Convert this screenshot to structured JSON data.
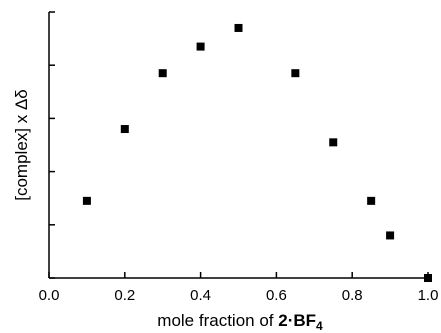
{
  "chart_data": {
    "type": "scatter",
    "title": "",
    "xlabel": {
      "prefix": "mole fraction of ",
      "bold": "2·BF",
      "subscript": "4"
    },
    "ylabel": "[complex] x Δδ",
    "xlim": [
      0.0,
      1.0
    ],
    "x_ticks": [
      0.0,
      0.2,
      0.4,
      0.6,
      0.8,
      1.0
    ],
    "x_tick_labels": [
      "0.0",
      "0.2",
      "0.4",
      "0.6",
      "0.8",
      "1.0"
    ],
    "y_tick_count": 6,
    "y_tick_labels_shown": false,
    "grid": false,
    "legend": "none",
    "marker": "square",
    "marker_color": "#000000",
    "points": [
      {
        "x": 0.1,
        "y": 0.29
      },
      {
        "x": 0.2,
        "y": 0.56
      },
      {
        "x": 0.3,
        "y": 0.77
      },
      {
        "x": 0.4,
        "y": 0.87
      },
      {
        "x": 0.5,
        "y": 0.94
      },
      {
        "x": 0.65,
        "y": 0.77
      },
      {
        "x": 0.75,
        "y": 0.51
      },
      {
        "x": 0.85,
        "y": 0.29
      },
      {
        "x": 0.9,
        "y": 0.16
      },
      {
        "x": 1.0,
        "y": 0.0
      }
    ]
  }
}
